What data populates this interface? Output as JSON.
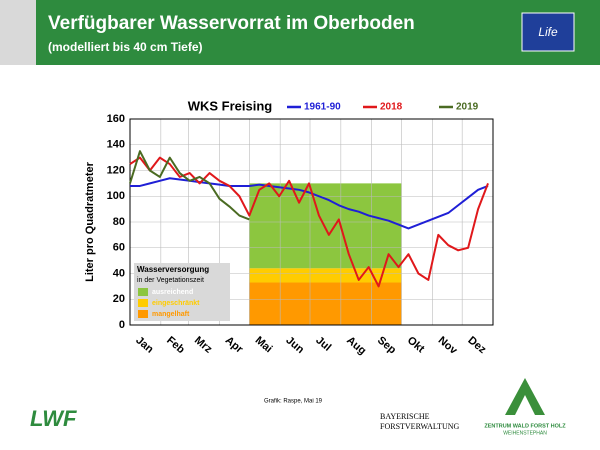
{
  "header": {
    "title": "Verfügbarer Wasservorrat im Oberboden",
    "subtitle": "(modelliert bis 40 cm Tiefe)"
  },
  "credit": "Grafik: Raspe, Mai 19",
  "logos": {
    "eu": "Life",
    "lwf": "LWF",
    "bayern_1": "BAYERISCHE",
    "bayern_2": "FORSTVERWALTUNG",
    "zentrum_1": "ZENTRUM WALD FORST HOLZ",
    "zentrum_2": "WEIHENSTEPHAN"
  },
  "chart_data": {
    "type": "line",
    "title": "WKS Freising",
    "y_label": "Liter pro Quadratmeter",
    "x": [
      0,
      10,
      20,
      30,
      40,
      50,
      60,
      70,
      80,
      90,
      100,
      110,
      120,
      130,
      140,
      150,
      160,
      170,
      180,
      190,
      200,
      210,
      220,
      230,
      240,
      250,
      260,
      270,
      280,
      290,
      300,
      310,
      320,
      330,
      340,
      350,
      360
    ],
    "xlim": [
      0,
      365
    ],
    "xticks": [
      {
        "value": 0,
        "label": "Jan"
      },
      {
        "value": 31,
        "label": "Feb"
      },
      {
        "value": 59,
        "label": "Mrz"
      },
      {
        "value": 90,
        "label": "Apr"
      },
      {
        "value": 120,
        "label": "Mai"
      },
      {
        "value": 151,
        "label": "Jun"
      },
      {
        "value": 181,
        "label": "Jul"
      },
      {
        "value": 212,
        "label": "Aug"
      },
      {
        "value": 243,
        "label": "Sep"
      },
      {
        "value": 273,
        "label": "Okt"
      },
      {
        "value": 304,
        "label": "Nov"
      },
      {
        "value": 334,
        "label": "Dez"
      }
    ],
    "ylim": [
      0,
      160
    ],
    "yticks": [
      0,
      20,
      40,
      60,
      80,
      100,
      120,
      140,
      160
    ],
    "grid": true,
    "series": [
      {
        "name": "1961-90",
        "color": "#1f1fd6",
        "values": [
          108,
          108,
          110,
          112,
          114,
          113,
          112,
          111,
          110,
          109,
          108,
          108,
          108,
          109,
          108,
          107,
          106,
          105,
          103,
          100,
          97,
          93,
          90,
          88,
          85,
          83,
          81,
          78,
          75,
          78,
          81,
          84,
          87,
          93,
          99,
          105,
          108
        ]
      },
      {
        "name": "2018",
        "color": "#e0181b",
        "values": [
          125,
          130,
          120,
          130,
          125,
          115,
          118,
          110,
          118,
          112,
          108,
          100,
          85,
          105,
          110,
          100,
          112,
          95,
          110,
          85,
          70,
          82,
          55,
          35,
          45,
          30,
          55,
          45,
          55,
          40,
          35,
          70,
          62,
          58,
          60,
          90,
          110
        ]
      },
      {
        "name": "2019",
        "color": "#4a6b22",
        "values": [
          110,
          135,
          120,
          115,
          130,
          118,
          112,
          115,
          110,
          98,
          92,
          85,
          82,
          null,
          null,
          null,
          null,
          null,
          null,
          null,
          null,
          null,
          null,
          null,
          null,
          null,
          null,
          null,
          null,
          null,
          null,
          null,
          null,
          null,
          null,
          null,
          null
        ]
      }
    ],
    "zone_title": "Wasserversorgung",
    "zone_subtitle": "in der Vegetationszeit",
    "zone_x": [
      120,
      273
    ],
    "zones": [
      {
        "name": "ausreichend",
        "color": "#8cc63f",
        "from": 44,
        "to": 110
      },
      {
        "name": "eingeschränkt",
        "color": "#ffcc00",
        "from": 33,
        "to": 44
      },
      {
        "name": "mangelhaft",
        "color": "#ff9900",
        "from": 0,
        "to": 33
      }
    ]
  }
}
